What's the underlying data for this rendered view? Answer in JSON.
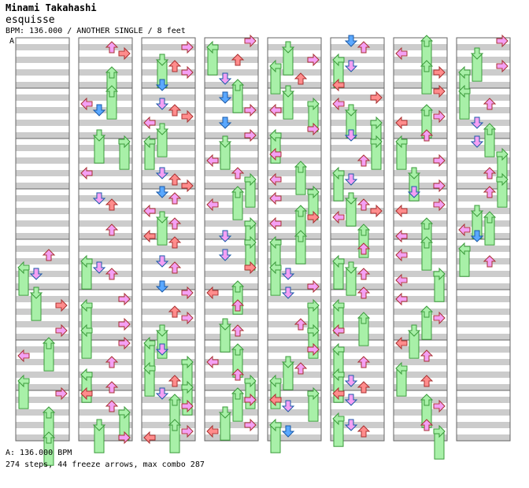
{
  "header": {
    "artist": "Minami Takahashi",
    "song": "esquisse",
    "meta": "BPM: 136.000 / ANOTHER SINGLE / 8 feet"
  },
  "marker_label": "A",
  "footer": {
    "bpm_line": "A: 136.000 BPM",
    "stats_line": "274 steps, 44 freeze arrows, max combo 287"
  },
  "colors": {
    "left": "#ff8c8c",
    "down": "#5aa8ff",
    "up": "#ff8c8c",
    "right": "#ff8c8c",
    "offbeat": "#f4a0f4",
    "freeze": "#a8f0a8",
    "stripe": "#cccccc"
  },
  "chart_data": {
    "type": "step_chart",
    "columns": 8,
    "measures_per_column": 8,
    "lanes": [
      "left",
      "down",
      "up",
      "right"
    ],
    "steps_per_measure": 8,
    "notes": [
      [
        [
          0,
          0,
          0,
          0,
          0,
          0,
          0,
          0
        ],
        [
          0,
          0,
          0,
          0,
          0,
          0,
          0,
          0
        ],
        [
          0,
          0,
          0,
          0,
          0,
          0,
          0,
          0
        ],
        [
          0,
          0,
          0,
          0,
          0,
          0,
          0,
          0
        ],
        [
          0,
          0,
          2,
          0,
          3,
          2,
          0,
          0
        ],
        [
          3,
          0,
          1,
          0,
          0,
          0,
          2,
          0
        ],
        [
          3,
          0,
          2,
          0,
          0,
          0,
          3,
          0
        ],
        [
          2,
          0,
          0,
          3,
          0,
          0,
          0,
          3
        ]
      ],
      [
        [
          0,
          2,
          1,
          0,
          0,
          3,
          0,
          0
        ],
        [
          3,
          0,
          2,
          1,
          0,
          0,
          0,
          3
        ],
        [
          3,
          0,
          0,
          0,
          0,
          2,
          0,
          0
        ],
        [
          0,
          2,
          1,
          0,
          0,
          0,
          2,
          0
        ],
        [
          0,
          0,
          0,
          3,
          2,
          2,
          0,
          0
        ],
        [
          0,
          2,
          3,
          0,
          0,
          2,
          3,
          0
        ],
        [
          2,
          0,
          0,
          2,
          0,
          3,
          0,
          2
        ],
        [
          1,
          0,
          2,
          3,
          0,
          3,
          0,
          2
        ]
      ],
      [
        [
          0,
          2,
          0,
          3,
          1,
          2,
          0,
          1
        ],
        [
          0,
          0,
          2,
          1,
          1,
          2,
          3,
          0
        ],
        [
          3,
          0,
          0,
          0,
          0,
          2,
          1,
          1
        ],
        [
          1,
          2,
          0,
          2,
          3,
          2,
          0,
          1
        ],
        [
          1,
          0,
          0,
          2,
          2,
          0,
          0,
          1
        ],
        [
          2,
          0,
          0,
          1,
          2,
          0,
          3,
          0
        ],
        [
          3,
          2,
          0,
          3,
          3,
          0,
          1,
          3
        ],
        [
          2,
          3,
          2,
          0,
          0,
          3,
          2,
          1
        ]
      ],
      [
        [
          2,
          3,
          0,
          1,
          0,
          0,
          2,
          3
        ],
        [
          0,
          1,
          0,
          2,
          0,
          1,
          0,
          2
        ],
        [
          3,
          0,
          0,
          2,
          0,
          2,
          3,
          0
        ],
        [
          3,
          0,
          2,
          0,
          0,
          3,
          0,
          2
        ],
        [
          3,
          0,
          2,
          0,
          1,
          0,
          0,
          3
        ],
        [
          1,
          0,
          2,
          0,
          0,
          3,
          2,
          0
        ],
        [
          0,
          3,
          0,
          2,
          0,
          2,
          3,
          0
        ],
        [
          3,
          2,
          0,
          3,
          0,
          2,
          1,
          0
        ]
      ],
      [
        [
          0,
          3,
          0,
          2,
          3,
          0,
          1,
          0
        ],
        [
          3,
          0,
          3,
          2,
          0,
          0,
          2,
          3
        ],
        [
          0,
          0,
          2,
          0,
          3,
          0,
          2,
          0
        ],
        [
          3,
          2,
          0,
          3,
          1,
          2,
          0,
          3
        ],
        [
          3,
          0,
          0,
          0,
          3,
          2,
          0,
          2
        ],
        [
          2,
          0,
          3,
          0,
          0,
          2,
          3,
          0
        ],
        [
          0,
          2,
          0,
          3,
          2,
          0,
          3,
          0
        ],
        [
          3,
          1,
          2,
          0,
          0,
          3,
          1,
          0
        ]
      ],
      [
        [
          1,
          2,
          0,
          3,
          2,
          0,
          0,
          1
        ],
        [
          0,
          1,
          2,
          3,
          0,
          3,
          0,
          2
        ],
        [
          3,
          0,
          0,
          2,
          0,
          3,
          2,
          0
        ],
        [
          0,
          3,
          2,
          1,
          2,
          0,
          3,
          0
        ],
        [
          0,
          2,
          0,
          3,
          3,
          2,
          0,
          0
        ],
        [
          2,
          0,
          3,
          0,
          3,
          0,
          2,
          0
        ],
        [
          0,
          3,
          0,
          2,
          0,
          3,
          2,
          1
        ],
        [
          1,
          2,
          0,
          0,
          3,
          2,
          1,
          0
        ]
      ],
      [
        [
          3,
          0,
          2,
          0,
          3,
          1,
          0,
          0
        ],
        [
          1,
          0,
          0,
          3,
          2,
          1,
          0,
          2
        ],
        [
          3,
          0,
          0,
          2,
          0,
          3,
          0,
          2
        ],
        [
          2,
          0,
          2,
          1,
          0,
          3,
          0,
          2
        ],
        [
          3,
          0,
          2,
          0,
          0,
          3,
          2,
          0
        ],
        [
          0,
          2,
          0,
          3,
          2,
          0,
          3,
          0
        ],
        [
          1,
          0,
          2,
          0,
          3,
          0,
          1,
          0
        ],
        [
          0,
          3,
          2,
          0,
          0,
          2,
          3,
          0
        ]
      ],
      [
        [
          2,
          0,
          3,
          0,
          2,
          3,
          0,
          0
        ],
        [
          3,
          0,
          2,
          0,
          0,
          2,
          3,
          0
        ],
        [
          2,
          0,
          3,
          0,
          0,
          2,
          3,
          0
        ],
        [
          2,
          0,
          0,
          3,
          3,
          0,
          2,
          1
        ],
        [
          0,
          3,
          0,
          2,
          0,
          0,
          0,
          0
        ],
        [
          0,
          0,
          0,
          0,
          0,
          0,
          0,
          0
        ],
        [
          0,
          0,
          0,
          0,
          0,
          0,
          0,
          0
        ],
        [
          0,
          0,
          0,
          0,
          0,
          0,
          0,
          0
        ]
      ]
    ]
  }
}
